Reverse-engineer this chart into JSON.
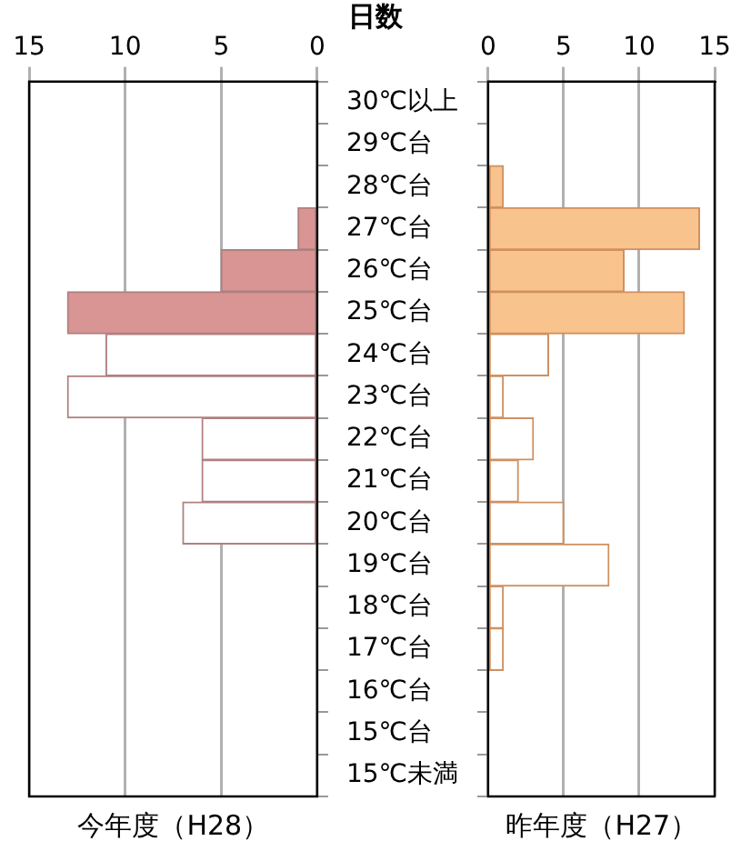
{
  "chart_data": [
    {
      "type": "bar",
      "orientation": "horizontal",
      "xlabel": "今年度（H28）",
      "categories": [
        "30℃以上",
        "29℃台",
        "28℃台",
        "27℃台",
        "26℃台",
        "25℃台",
        "24℃台",
        "23℃台",
        "22℃台",
        "21℃台",
        "20℃台",
        "19℃台",
        "18℃台",
        "17℃台",
        "16℃台",
        "15℃台",
        "15℃未満"
      ],
      "values": [
        0,
        0,
        0,
        1,
        5,
        13,
        11,
        13,
        6,
        6,
        7,
        0,
        0,
        0,
        0,
        0,
        0
      ],
      "colors": [
        "#ffffff",
        "#ffffff",
        "#ffffff",
        "#d99594",
        "#d99594",
        "#d99594",
        "#ffffff",
        "#ffffff",
        "#ffffff",
        "#ffffff",
        "#ffffff",
        "#ffffff",
        "#ffffff",
        "#ffffff",
        "#ffffff",
        "#ffffff",
        "#ffffff"
      ],
      "color": "#b08080",
      "xlim": [
        15,
        0
      ],
      "xticks": [
        15,
        10,
        5,
        0
      ],
      "grid": "x"
    },
    {
      "type": "bar",
      "orientation": "horizontal",
      "xlabel": "昨年度（H27）",
      "categories": [
        null,
        null,
        null,
        null,
        null,
        null,
        null,
        null,
        null,
        null,
        null,
        null,
        null,
        null,
        null,
        null,
        null
      ],
      "values": [
        0,
        0,
        1,
        14,
        9,
        13,
        4,
        1,
        3,
        2,
        5,
        8,
        1,
        1,
        0,
        0,
        0
      ],
      "colors": [
        "#ffffff",
        "#ffffff",
        "#f9c38e",
        "#f9c38e",
        "#f9c38e",
        "#f9c38e",
        "#ffffff",
        "#ffffff",
        "#ffffff",
        "#ffffff",
        "#ffffff",
        "#ffffff",
        "#ffffff",
        "#ffffff",
        "#ffffff",
        "#ffffff",
        "#ffffff"
      ],
      "color": "#d09060",
      "xlim": [
        0,
        15
      ],
      "xticks": [
        0,
        5,
        10,
        15
      ],
      "grid": "x",
      "tick_labels": "x"
    },
    {
      "type": "other",
      "title": "日数"
    }
  ]
}
